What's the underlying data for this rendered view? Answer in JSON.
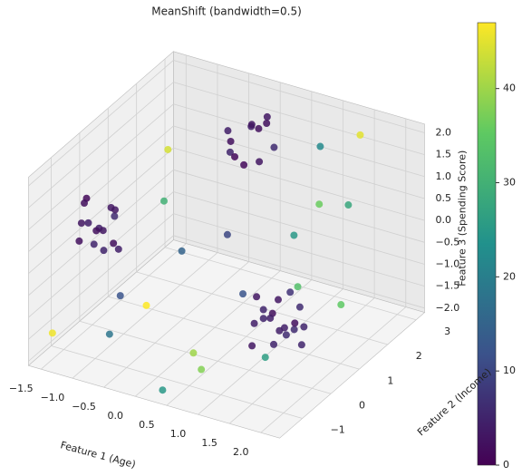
{
  "chart_data": {
    "type": "scatter3d",
    "title": "MeanShift (bandwidth=0.5)",
    "x_label": "Feature 1 (Age)",
    "y_label": "Feature 2 (Income)",
    "z_label": "Feature 3 (Spending Score)",
    "x": [
      -1.4,
      -1.3,
      -1.2,
      -1.1,
      -1.5,
      -1.0,
      -1.3,
      -1.2,
      -0.9,
      -1.4,
      -1.1,
      -1.0,
      -1.2,
      -0.8,
      -1.3,
      -0.2,
      0.0,
      0.1,
      -0.1,
      0.2,
      0.3,
      -0.3,
      0.1,
      0.0,
      0.2,
      -0.2,
      0.4,
      1.0,
      1.2,
      1.4,
      1.1,
      1.3,
      1.5,
      0.9,
      1.2,
      1.6,
      1.0,
      1.4,
      1.3,
      1.1,
      1.7,
      0.8,
      1.5,
      1.2,
      1.0,
      -1.5,
      -0.6,
      0.3,
      1.9,
      2.1,
      -0.9,
      0.6,
      1.0,
      -0.3,
      1.8,
      0.7,
      -1.2,
      0.2,
      1.5,
      2.0,
      -0.5,
      0.9,
      1.3,
      -1.0,
      0.4
    ],
    "y": [
      -0.6,
      -0.3,
      -0.8,
      -0.5,
      -0.2,
      -0.7,
      -0.9,
      0.0,
      -0.4,
      -0.5,
      -0.1,
      -0.3,
      -0.6,
      -0.8,
      -0.2,
      2.0,
      2.3,
      1.8,
      2.5,
      2.1,
      1.9,
      2.2,
      2.6,
      1.7,
      2.4,
      1.9,
      2.2,
      0.5,
      0.3,
      0.7,
      0.8,
      0.2,
      0.5,
      0.4,
      1.0,
      0.6,
      0.1,
      0.9,
      0.4,
      0.6,
      0.3,
      0.7,
      0.2,
      0.8,
      0.5,
      -1.4,
      -1.0,
      -1.5,
      1.5,
      0.8,
      1.2,
      -0.8,
      2.5,
      0.5,
      -1.2,
      -1.3,
      2.0,
      1.0,
      2.8,
      -0.5,
      -1.6,
      0.0,
      1.8,
      0.8,
      2.9
    ],
    "z": [
      0.6,
      0.3,
      0.8,
      0.5,
      0.9,
      0.2,
      0.4,
      0.7,
      0.1,
      1.0,
      0.6,
      0.9,
      0.2,
      0.5,
      0.3,
      1.5,
      1.8,
      1.2,
      1.6,
      1.9,
      1.3,
      1.1,
      1.7,
      1.4,
      2.0,
      1.8,
      1.5,
      -1.2,
      -1.0,
      -1.4,
      -0.9,
      -1.5,
      -1.1,
      -1.3,
      -0.8,
      -1.2,
      -1.6,
      -1.0,
      -1.3,
      -1.1,
      -1.4,
      -0.9,
      -1.2,
      -1.5,
      -1.0,
      -1.5,
      -0.5,
      -2.0,
      1.2,
      -0.6,
      0.3,
      -1.8,
      1.6,
      -0.2,
      -0.8,
      -1.1,
      0.9,
      0.1,
      1.9,
      0.5,
      -1.0,
      -0.4,
      0.8,
      -1.9,
      -0.9
    ],
    "values": [
      3,
      2,
      4,
      3,
      1,
      5,
      2,
      3,
      4,
      2,
      6,
      3,
      5,
      2,
      4,
      2,
      3,
      1,
      4,
      2,
      3,
      5,
      2,
      1,
      3,
      4,
      6,
      5,
      4,
      6,
      3,
      5,
      2,
      4,
      7,
      5,
      3,
      6,
      4,
      2,
      5,
      3,
      6,
      4,
      5,
      46,
      12,
      25,
      28,
      35,
      30,
      38,
      22,
      15,
      26,
      40,
      44,
      10,
      45,
      33,
      18,
      12,
      36,
      47,
      25
    ],
    "xlim": [
      -1.7,
      2.3
    ],
    "ylim": [
      -1.8,
      3.3
    ],
    "zlim": [
      -2.1,
      2.2
    ],
    "xticks": [
      {
        "value": -1.5,
        "label": "−1.5"
      },
      {
        "value": -1.0,
        "label": "−1.0"
      },
      {
        "value": -0.5,
        "label": "−0.5"
      },
      {
        "value": 0,
        "label": "0.0"
      },
      0.5,
      {
        "value": 1,
        "label": "1.0"
      },
      1.5,
      {
        "value": 2,
        "label": "2.0"
      }
    ],
    "yticks": [
      {
        "value": -1,
        "label": "−1"
      },
      0,
      1,
      2,
      3
    ],
    "zticks": [
      {
        "value": -2,
        "label": "−2.0"
      },
      {
        "value": -1.5,
        "label": "−1.5"
      },
      {
        "value": -1,
        "label": "−1.0"
      },
      {
        "value": -0.5,
        "label": "−0.5"
      },
      {
        "value": 0,
        "label": "0.0"
      },
      0.5,
      {
        "value": 1,
        "label": "1.0"
      },
      1.5,
      {
        "value": 2,
        "label": "2.0"
      }
    ],
    "colormap": "viridis",
    "clim": [
      0,
      47
    ],
    "cticks": [
      0,
      10,
      20,
      30,
      40
    ]
  }
}
